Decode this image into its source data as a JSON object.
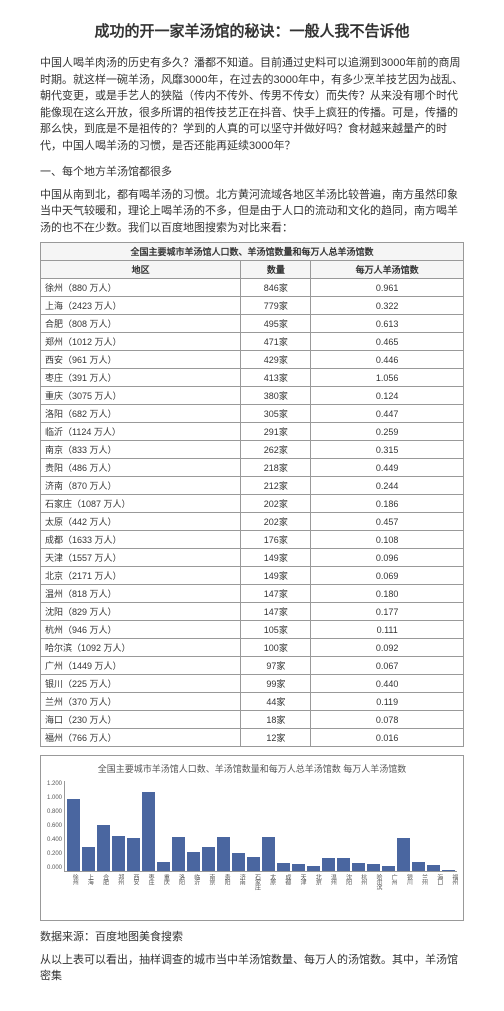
{
  "title": "成功的开一家羊汤馆的秘诀：一般人我不告诉他",
  "p1": "中国人喝羊肉汤的历史有多久？潘都不知道。目前通过史料可以追溯到3000年前的商周时期。就这样一碗羊汤，风靡3000年，在过去的3000年中，有多少烹羊技艺因为战乱、朝代变更，或是手艺人的狭隘（传内不传外、传男不传女）而失传？从来没有哪个时代能像现在这么开放，很多所谓的祖传技艺正在抖音、快手上疯狂的传播。可是，传播的那么快，到底是不是祖传的？学到的人真的可以坚守并做好吗？食材越来越量产的时代，中国人喝羊汤的习惯，是否还能再延续3000年？",
  "sec1": "一、每个地方羊汤馆都很多",
  "p2": "中国从南到北，都有喝羊汤的习惯。北方黄河流域各地区羊汤比较普遍，南方虽然印象当中天气较暖和，理论上喝羊汤的不多，但是由于人口的流动和文化的趋同，南方喝羊汤的也不在少数。我们以百度地图搜索为对比来看：",
  "tableCaption": "全国主要城市羊汤馆人口数、羊汤馆数量和每万人总羊汤馆数",
  "th1": "地区",
  "th2": "数量",
  "th3": "每万人羊汤馆数",
  "rows": [
    [
      "徐州（880 万人）",
      "846家",
      "0.961"
    ],
    [
      "上海（2423 万人）",
      "779家",
      "0.322"
    ],
    [
      "合肥（808 万人）",
      "495家",
      "0.613"
    ],
    [
      "郑州（1012 万人）",
      "471家",
      "0.465"
    ],
    [
      "西安（961 万人）",
      "429家",
      "0.446"
    ],
    [
      "枣庄（391 万人）",
      "413家",
      "1.056"
    ],
    [
      "重庆（3075 万人）",
      "380家",
      "0.124"
    ],
    [
      "洛阳（682 万人）",
      "305家",
      "0.447"
    ],
    [
      "临沂（1124 万人）",
      "291家",
      "0.259"
    ],
    [
      "南京（833 万人）",
      "262家",
      "0.315"
    ],
    [
      "贵阳（486 万人）",
      "218家",
      "0.449"
    ],
    [
      "济南（870 万人）",
      "212家",
      "0.244"
    ],
    [
      "石家庄（1087 万人）",
      "202家",
      "0.186"
    ],
    [
      "太原（442 万人）",
      "202家",
      "0.457"
    ],
    [
      "成都（1633 万人）",
      "176家",
      "0.108"
    ],
    [
      "天津（1557 万人）",
      "149家",
      "0.096"
    ],
    [
      "北京（2171 万人）",
      "149家",
      "0.069"
    ],
    [
      "温州（818 万人）",
      "147家",
      "0.180"
    ],
    [
      "沈阳（829 万人）",
      "147家",
      "0.177"
    ],
    [
      "杭州（946 万人）",
      "105家",
      "0.111"
    ],
    [
      "哈尔滨（1092 万人）",
      "100家",
      "0.092"
    ],
    [
      "广州（1449 万人）",
      "97家",
      "0.067"
    ],
    [
      "银川（225 万人）",
      "99家",
      "0.440"
    ],
    [
      "兰州（370 万人）",
      "44家",
      "0.119"
    ],
    [
      "海口（230 万人）",
      "18家",
      "0.078"
    ],
    [
      "福州（766 万人）",
      "12家",
      "0.016"
    ]
  ],
  "chartTitle": "全国主要城市羊汤馆人口数、羊汤馆数量和每万人总羊汤馆数 每万人羊汤馆数",
  "chart": {
    "color": "#4a66a0",
    "ylabels": [
      "1.200",
      "1.000",
      "0.800",
      "0.600",
      "0.400",
      "0.200",
      "0.000"
    ],
    "bars": [
      {
        "label": "徐州",
        "v": 0.961
      },
      {
        "label": "上海",
        "v": 0.322
      },
      {
        "label": "合肥",
        "v": 0.613
      },
      {
        "label": "郑州",
        "v": 0.465
      },
      {
        "label": "西安",
        "v": 0.446
      },
      {
        "label": "枣庄",
        "v": 1.056
      },
      {
        "label": "重庆",
        "v": 0.124
      },
      {
        "label": "洛阳",
        "v": 0.447
      },
      {
        "label": "临沂",
        "v": 0.259
      },
      {
        "label": "南京",
        "v": 0.315
      },
      {
        "label": "贵阳",
        "v": 0.449
      },
      {
        "label": "济南",
        "v": 0.244
      },
      {
        "label": "石家庄",
        "v": 0.186
      },
      {
        "label": "太原",
        "v": 0.457
      },
      {
        "label": "成都",
        "v": 0.108
      },
      {
        "label": "天津",
        "v": 0.096
      },
      {
        "label": "北京",
        "v": 0.069
      },
      {
        "label": "温州",
        "v": 0.18
      },
      {
        "label": "沈阳",
        "v": 0.177
      },
      {
        "label": "杭州",
        "v": 0.111
      },
      {
        "label": "哈尔滨",
        "v": 0.092
      },
      {
        "label": "广州",
        "v": 0.067
      },
      {
        "label": "银川",
        "v": 0.44
      },
      {
        "label": "兰州",
        "v": 0.119
      },
      {
        "label": "海口",
        "v": 0.078
      },
      {
        "label": "福州",
        "v": 0.016
      }
    ]
  },
  "source": "数据来源：百度地图美食搜索",
  "p3": "从以上表可以看出，抽样调查的城市当中羊汤馆数量、每万人的汤馆数。其中，羊汤馆密集"
}
